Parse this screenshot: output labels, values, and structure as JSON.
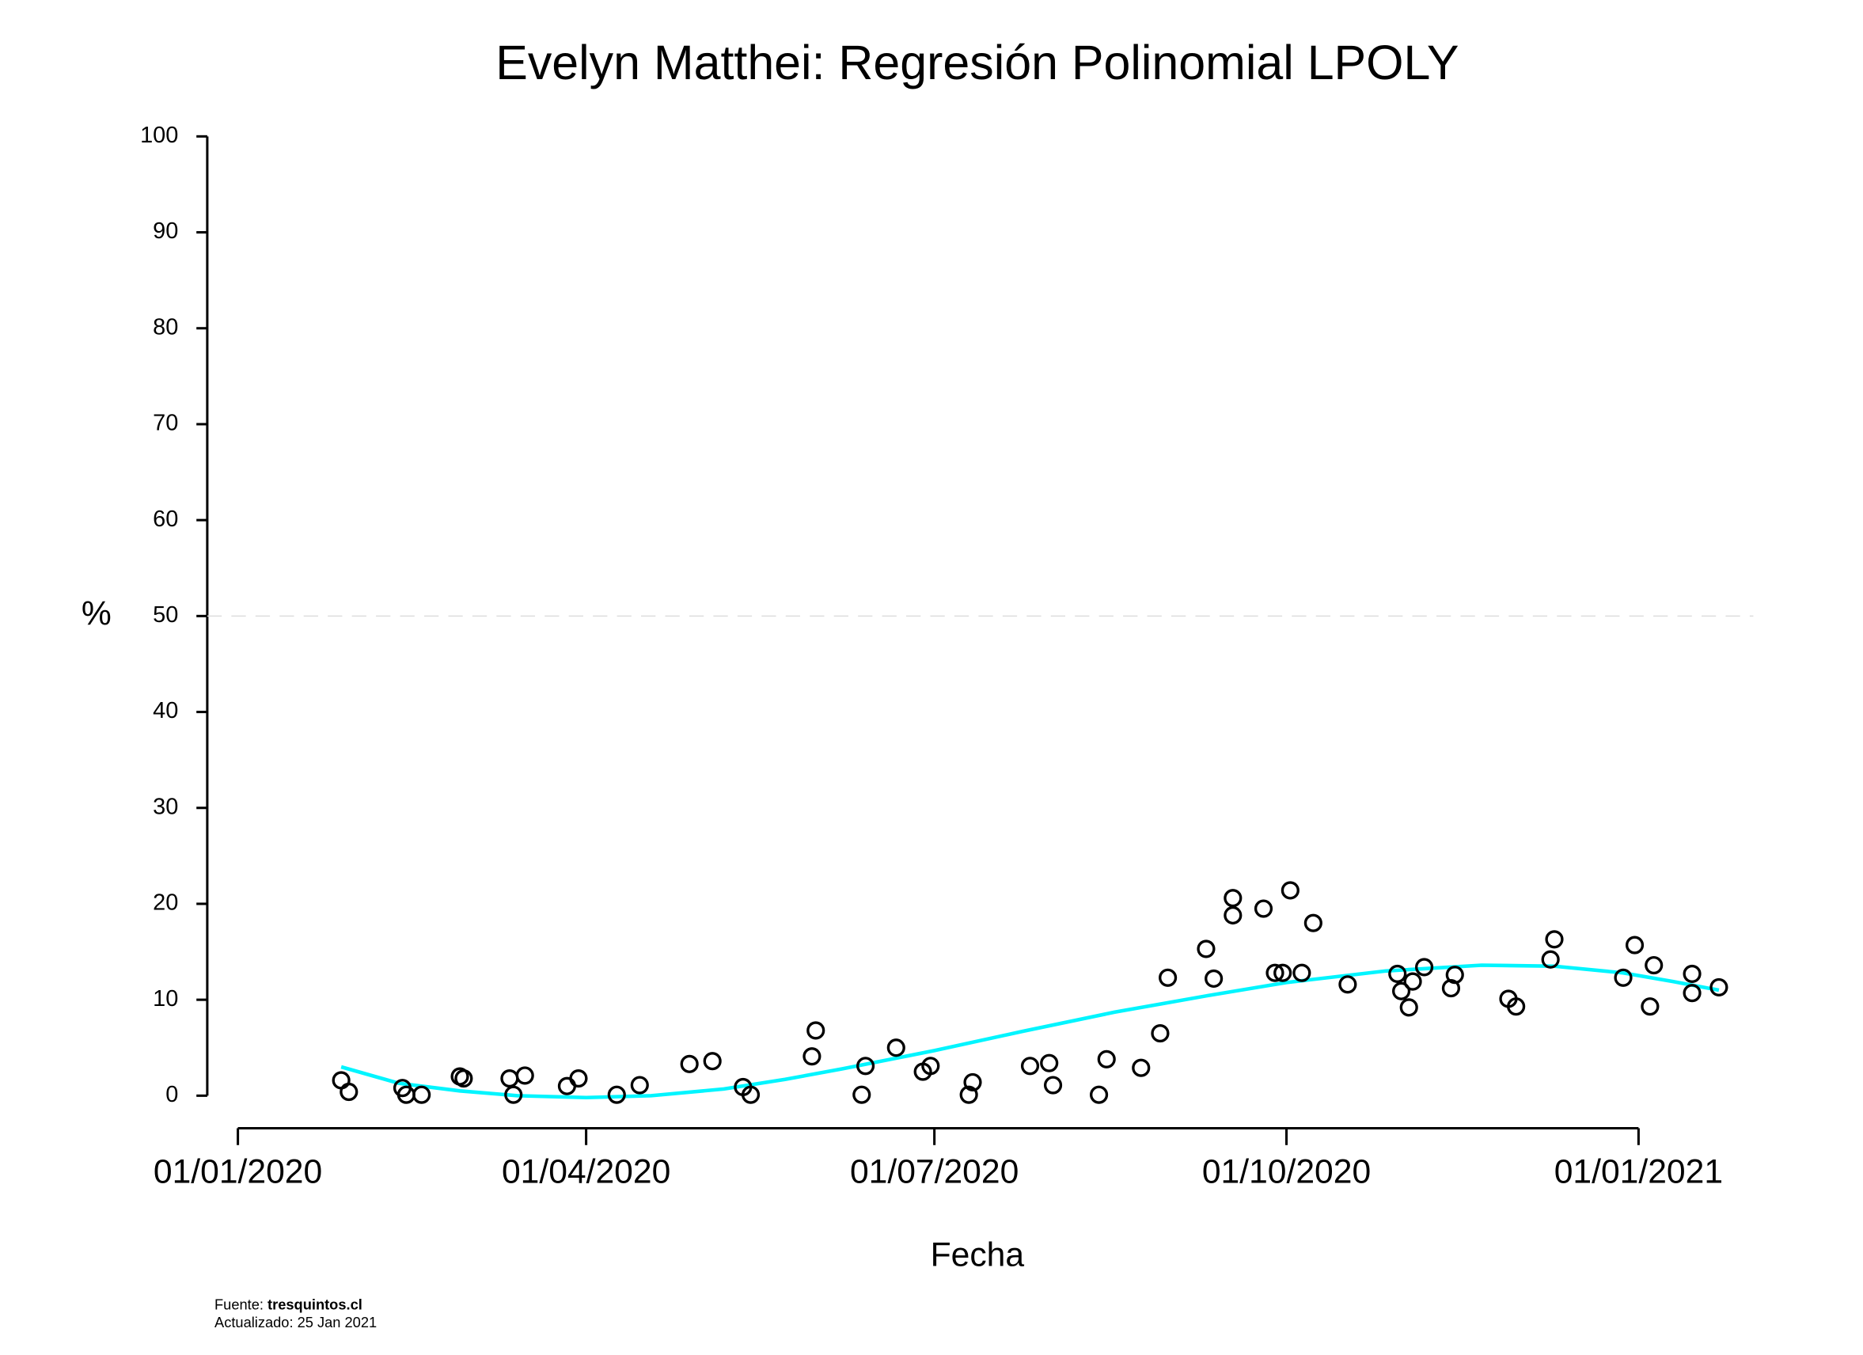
{
  "chart_data": {
    "type": "scatter",
    "title": "Evelyn Matthei: Regresión Polinomial LPOLY",
    "x_label": "Fecha",
    "y_label": "%",
    "xlim": [
      "2019-12-24",
      "2021-01-31"
    ],
    "xticks": [
      {
        "value": "2020-01-01",
        "label": "01/01/2020"
      },
      {
        "value": "2020-04-01",
        "label": "01/04/2020"
      },
      {
        "value": "2020-07-01",
        "label": "01/07/2020"
      },
      {
        "value": "2020-10-01",
        "label": "01/10/2020"
      },
      {
        "value": "2021-01-01",
        "label": "01/01/2021"
      }
    ],
    "ylim": [
      0,
      100
    ],
    "yticks": [
      0,
      10,
      20,
      30,
      40,
      50,
      60,
      70,
      80,
      90,
      100
    ],
    "reference_line": 50,
    "points": {
      "color": "#000000",
      "x": [
        "2020-01-28",
        "2020-01-30",
        "2020-02-13",
        "2020-02-14",
        "2020-02-18",
        "2020-02-28",
        "2020-02-29",
        "2020-03-12",
        "2020-03-13",
        "2020-03-16",
        "2020-03-27",
        "2020-03-30",
        "2020-04-09",
        "2020-04-15",
        "2020-04-28",
        "2020-05-04",
        "2020-05-12",
        "2020-05-14",
        "2020-05-30",
        "2020-05-31",
        "2020-06-12",
        "2020-06-13",
        "2020-06-21",
        "2020-06-28",
        "2020-06-30",
        "2020-07-10",
        "2020-07-11",
        "2020-07-26",
        "2020-07-31",
        "2020-08-01",
        "2020-08-13",
        "2020-08-15",
        "2020-08-24",
        "2020-08-29",
        "2020-08-31",
        "2020-09-10",
        "2020-09-12",
        "2020-09-17",
        "2020-09-17",
        "2020-09-25",
        "2020-09-28",
        "2020-09-30",
        "2020-10-02",
        "2020-10-05",
        "2020-10-08",
        "2020-10-17",
        "2020-10-30",
        "2020-10-31",
        "2020-11-02",
        "2020-11-03",
        "2020-11-06",
        "2020-11-13",
        "2020-11-14",
        "2020-11-28",
        "2020-11-30",
        "2020-12-09",
        "2020-12-10",
        "2020-12-28",
        "2020-12-31",
        "2021-01-04",
        "2021-01-05",
        "2021-01-15",
        "2021-01-15",
        "2021-01-22"
      ],
      "values": [
        1.6,
        0.4,
        0.8,
        0.1,
        0.1,
        2.0,
        1.8,
        1.8,
        0.1,
        2.1,
        1.0,
        1.8,
        0.1,
        1.1,
        3.3,
        3.6,
        0.9,
        0.1,
        4.1,
        6.8,
        0.1,
        3.1,
        5.0,
        2.5,
        3.1,
        0.1,
        1.4,
        3.1,
        3.4,
        1.1,
        0.1,
        3.8,
        2.9,
        6.5,
        12.3,
        15.3,
        12.2,
        20.6,
        18.8,
        19.5,
        12.8,
        12.8,
        21.4,
        12.8,
        18.0,
        11.6,
        12.7,
        10.9,
        9.2,
        11.9,
        13.4,
        11.2,
        12.6,
        10.1,
        9.3,
        14.2,
        16.3,
        12.3,
        15.7,
        9.3,
        13.6,
        12.7,
        10.7,
        11.3
      ]
    },
    "fit": {
      "color": "#00f5ff",
      "x": [
        "2020-01-28",
        "2020-02-12",
        "2020-02-28",
        "2020-03-14",
        "2020-04-01",
        "2020-04-18",
        "2020-05-07",
        "2020-05-23",
        "2020-06-07",
        "2020-07-01",
        "2020-07-24",
        "2020-08-17",
        "2020-09-10",
        "2020-10-01",
        "2020-10-27",
        "2020-11-21",
        "2020-12-10",
        "2020-12-28",
        "2021-01-10",
        "2021-01-22"
      ],
      "values": [
        3.0,
        1.3,
        0.5,
        0.0,
        -0.2,
        0.0,
        0.7,
        1.7,
        2.8,
        4.7,
        6.7,
        8.7,
        10.4,
        11.8,
        13.0,
        13.6,
        13.5,
        12.8,
        11.9,
        11.0
      ]
    },
    "source_label": "Fuente:",
    "source": "tresquintos.cl",
    "updated": "Actualizado: 25 Jan 2021"
  }
}
